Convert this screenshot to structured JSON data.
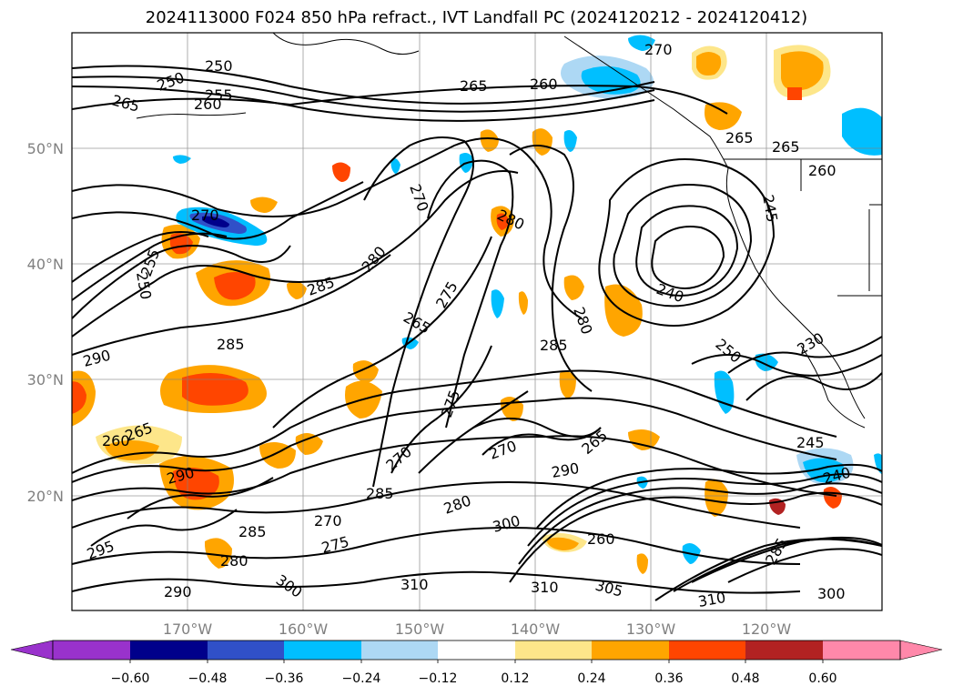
{
  "title": "2024113000 F024 850 hPa refract., IVT Landfall PC (2024120212 - 2024120412)",
  "map": {
    "lat_labels": [
      "50°N",
      "40°N",
      "30°N",
      "20°N"
    ],
    "lon_labels": [
      "170°W",
      "160°W",
      "150°W",
      "140°W",
      "130°W",
      "120°W"
    ],
    "contour_labels": [
      "250",
      "250",
      "255",
      "260",
      "265",
      "265",
      "260",
      "270",
      "265",
      "265",
      "260",
      "270",
      "270",
      "280",
      "280",
      "285",
      "265",
      "275",
      "280",
      "285",
      "240",
      "250",
      "255",
      "250",
      "290",
      "285",
      "275",
      "270",
      "265",
      "260",
      "290",
      "285",
      "270",
      "280",
      "270",
      "290",
      "265",
      "300",
      "260",
      "280",
      "275",
      "285",
      "295",
      "290",
      "300",
      "310",
      "310",
      "305",
      "310",
      "300",
      "285",
      "245",
      "240",
      "245",
      "230"
    ]
  },
  "colorbar": {
    "ticks": [
      "−0.60",
      "−0.48",
      "−0.36",
      "−0.24",
      "−0.12",
      "0.12",
      "0.24",
      "0.36",
      "0.48",
      "0.60"
    ],
    "colors": [
      "#9932cc",
      "#00008b",
      "#3050c8",
      "#00bfff",
      "#add8f4",
      "#ffffff",
      "#fde68a",
      "#ffa500",
      "#ff4500",
      "#b22222",
      "#ff88aa"
    ]
  }
}
